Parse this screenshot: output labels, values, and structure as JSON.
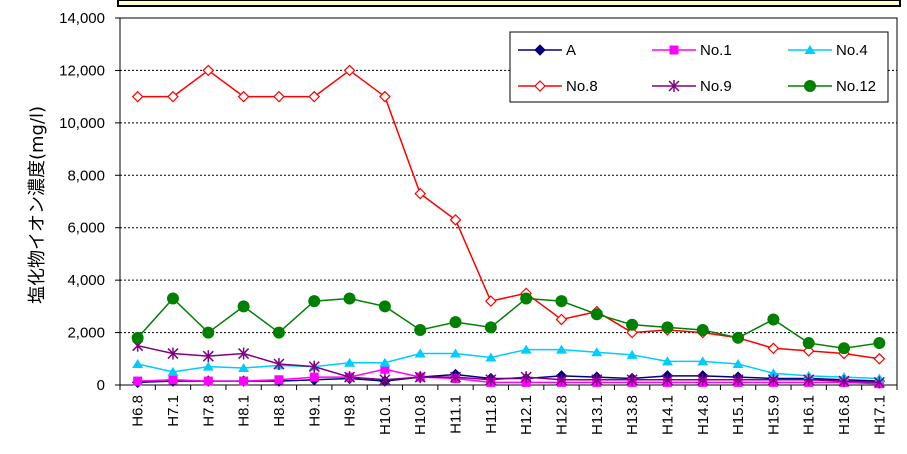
{
  "chart_data": {
    "type": "line",
    "ylabel": "塩化物イオン濃度(mg/l)",
    "ylim": [
      0,
      14000
    ],
    "yticks": [
      0,
      2000,
      4000,
      6000,
      8000,
      10000,
      12000,
      14000
    ],
    "ytick_labels": [
      "0",
      "2,000",
      "4,000",
      "6,000",
      "8,000",
      "10,000",
      "12,000",
      "14,000"
    ],
    "grid": true,
    "legend_position": "top-right",
    "categories": [
      "H6.8",
      "H7.1",
      "H7.8",
      "H8.1",
      "H8.8",
      "H9.1",
      "H9.8",
      "H10.1",
      "H10.8",
      "H11.1",
      "H11.8",
      "H12.1",
      "H12.8",
      "H13.1",
      "H13.8",
      "H14.1",
      "H14.8",
      "H15.1",
      "H15.9",
      "H16.1",
      "H16.8",
      "H17.1"
    ],
    "series": [
      {
        "name": "A",
        "color": "#000080",
        "marker": "diamond",
        "values": [
          100,
          150,
          150,
          150,
          150,
          200,
          250,
          150,
          300,
          400,
          250,
          250,
          350,
          300,
          250,
          350,
          350,
          300,
          250,
          250,
          200,
          150
        ]
      },
      {
        "name": "No.1",
        "color": "#ff00ff",
        "marker": "square",
        "values": [
          150,
          200,
          150,
          150,
          200,
          300,
          300,
          600,
          300,
          250,
          100,
          100,
          100,
          100,
          100,
          100,
          100,
          100,
          100,
          100,
          100,
          50
        ]
      },
      {
        "name": "No.4",
        "color": "#00ccff",
        "marker": "triangle",
        "values": [
          800,
          500,
          700,
          650,
          750,
          700,
          850,
          850,
          1200,
          1200,
          1050,
          1350,
          1350,
          1250,
          1150,
          900,
          900,
          800,
          450,
          350,
          300,
          250
        ]
      },
      {
        "name": "No.8",
        "color": "#ff0000",
        "marker": "open-diamond",
        "values": [
          11000,
          11000,
          12000,
          11000,
          11000,
          11000,
          12000,
          11000,
          7300,
          6300,
          3200,
          3500,
          2500,
          2800,
          2000,
          2100,
          2000,
          1800,
          1400,
          1300,
          1200,
          1000
        ]
      },
      {
        "name": "No.9",
        "color": "#800080",
        "marker": "asterisk",
        "values": [
          1500,
          1200,
          1100,
          1200,
          800,
          700,
          300,
          200,
          300,
          300,
          200,
          300,
          200,
          200,
          200,
          200,
          200,
          200,
          200,
          200,
          150,
          100
        ]
      },
      {
        "name": "No.12",
        "color": "#008000",
        "marker": "circle",
        "values": [
          1800,
          3300,
          2000,
          3000,
          2000,
          3200,
          3300,
          3000,
          2100,
          2400,
          2200,
          3300,
          3200,
          2700,
          2300,
          2200,
          2100,
          1800,
          2500,
          1600,
          1400,
          1600
        ]
      }
    ]
  }
}
